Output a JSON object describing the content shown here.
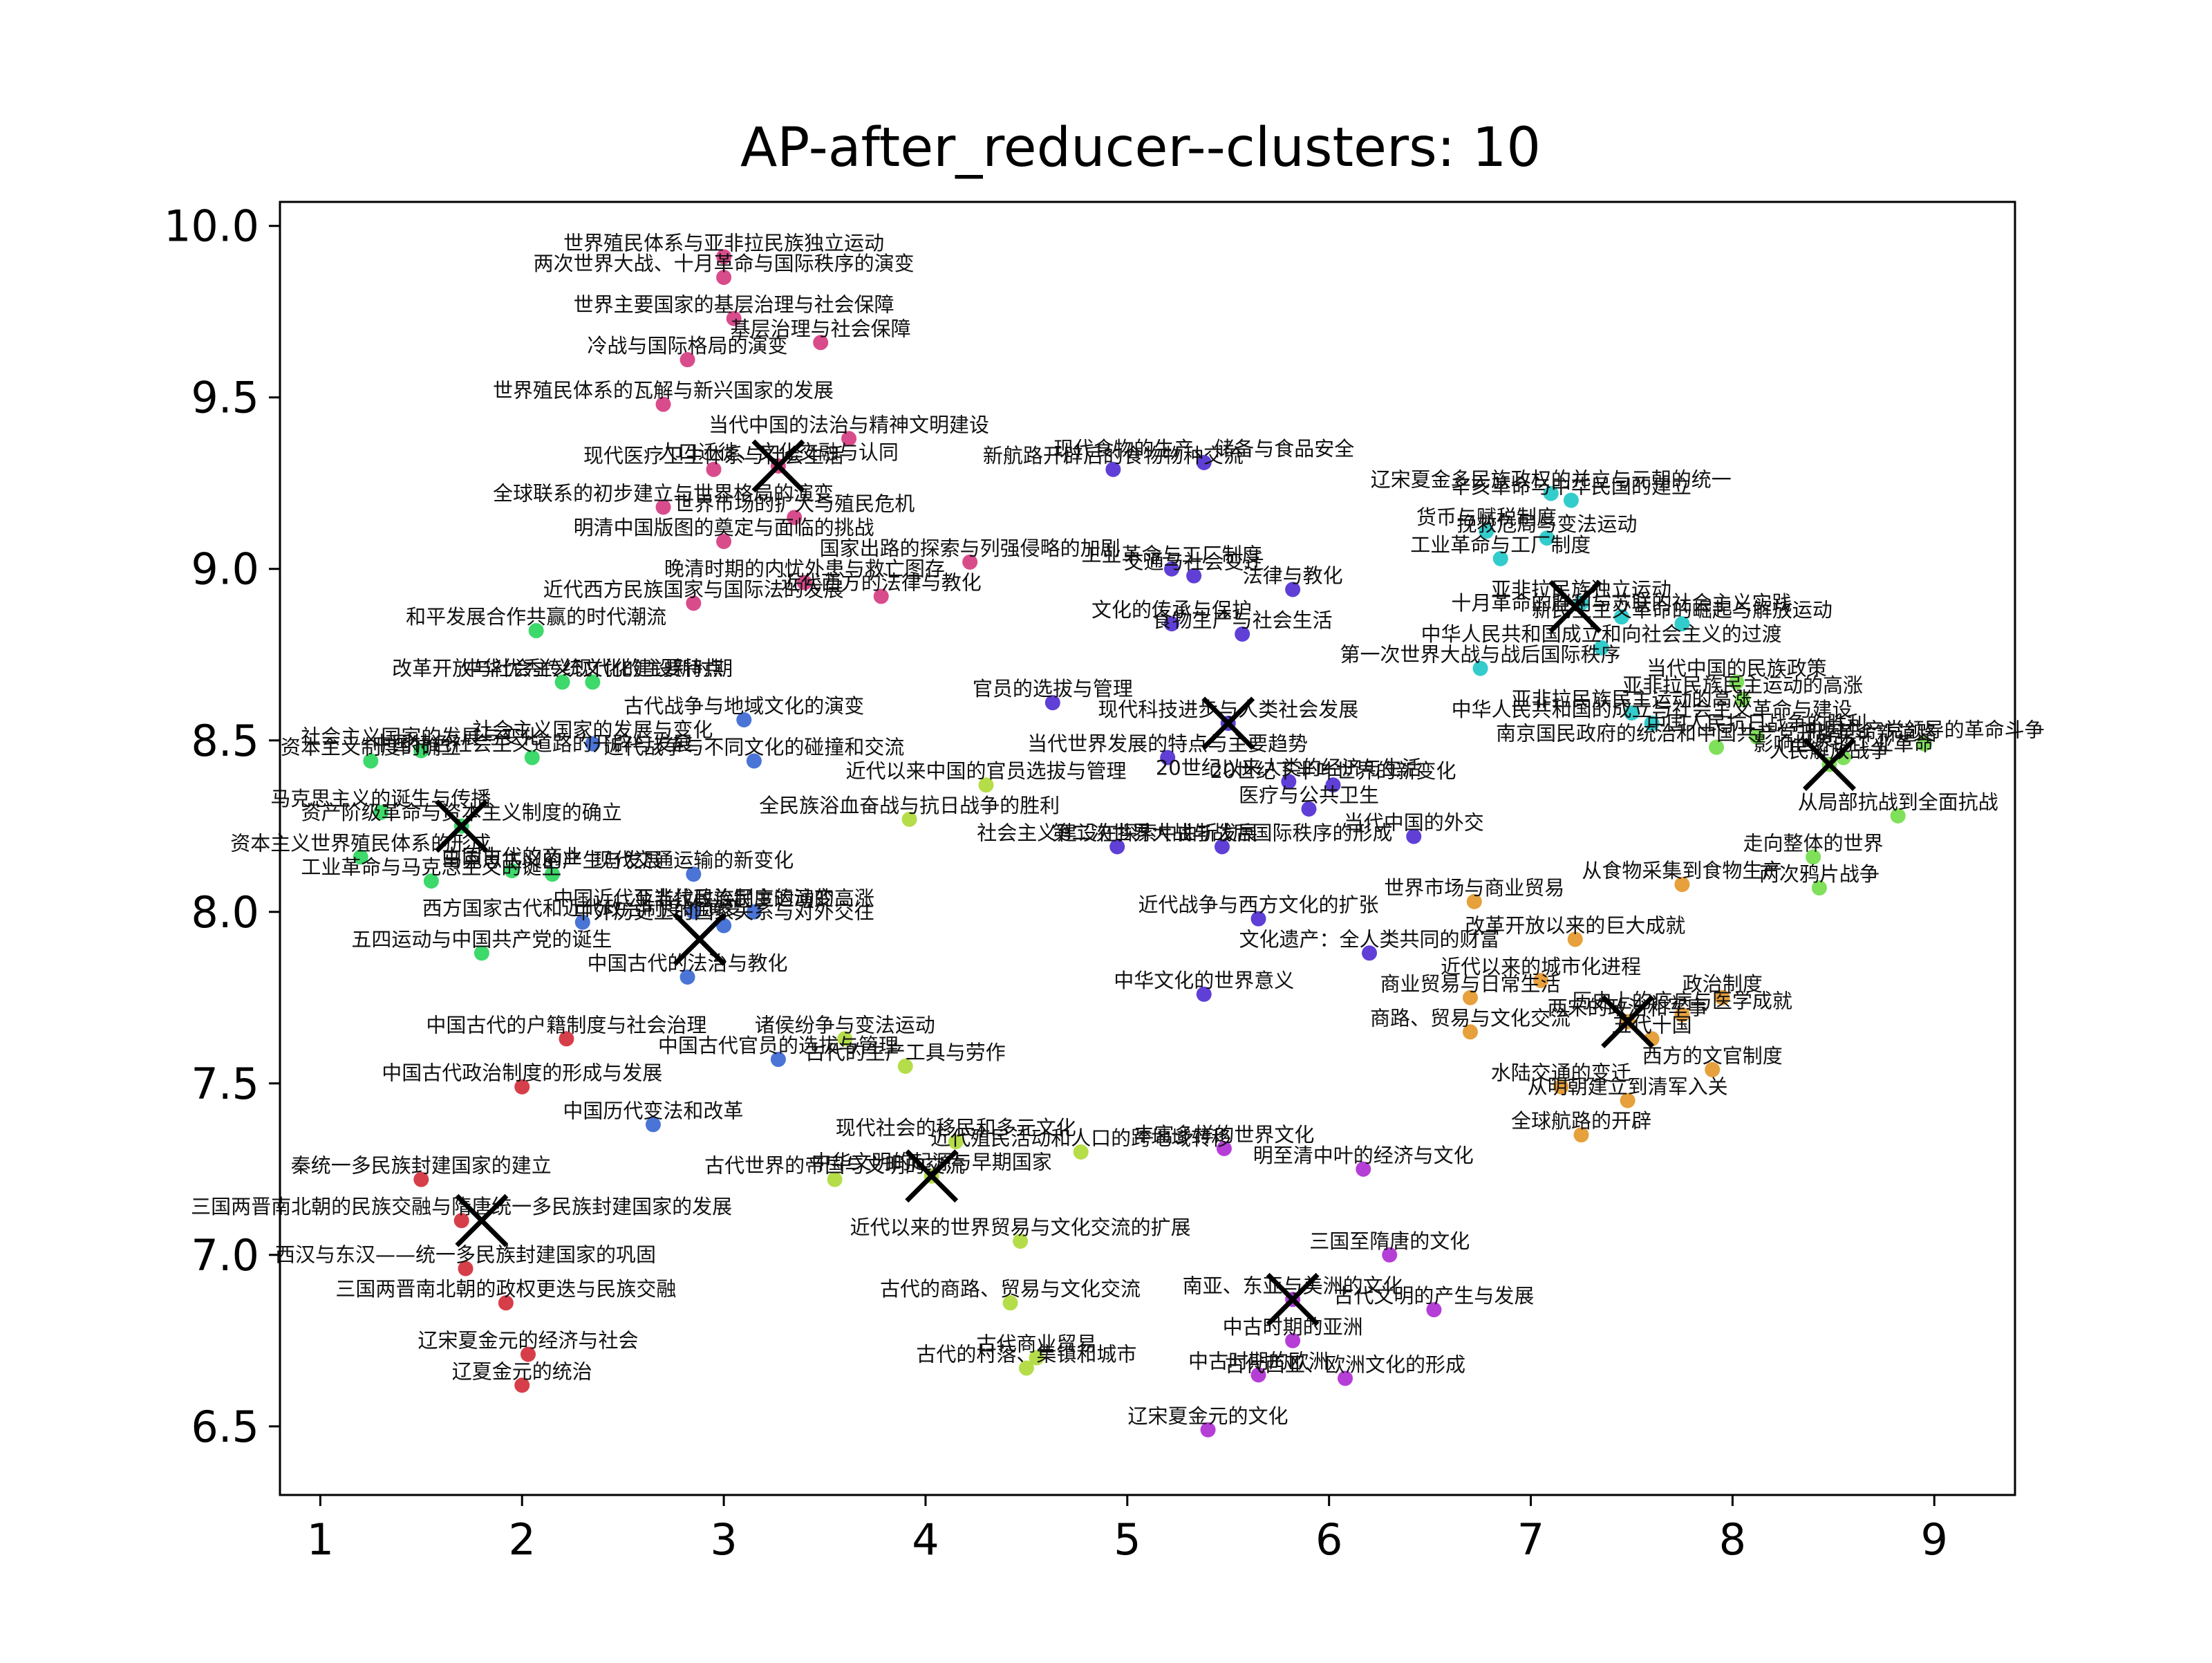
{
  "chart_data": {
    "type": "scatter",
    "title": "AP-after_reducer--clusters: 10",
    "xlabel": "",
    "ylabel": "",
    "xlim": [
      0.8,
      9.4
    ],
    "ylim": [
      6.3,
      10.07
    ],
    "xticks": [
      1,
      2,
      3,
      4,
      5,
      6,
      7,
      8,
      9
    ],
    "yticks": [
      6.5,
      7.0,
      7.5,
      8.0,
      8.5,
      9.0,
      9.5,
      10.0
    ],
    "ytick_labels": [
      "6.5",
      "7.0",
      "7.5",
      "8.0",
      "8.5",
      "9.0",
      "9.5",
      "10.0"
    ],
    "grid": false,
    "legend": "none",
    "centers_marker": "x",
    "cluster_colors": [
      "#d63f4a",
      "#d94c8c",
      "#4a74d6",
      "#5f3fd6",
      "#b53fd6",
      "#33cccc",
      "#3dd96b",
      "#7fe05a",
      "#b5dd4a",
      "#e6a03c"
    ],
    "cluster_centers": [
      {
        "x": 1.8,
        "y": 7.1
      },
      {
        "x": 3.27,
        "y": 9.3
      },
      {
        "x": 2.88,
        "y": 7.92
      },
      {
        "x": 5.5,
        "y": 8.55
      },
      {
        "x": 5.82,
        "y": 6.87
      },
      {
        "x": 7.22,
        "y": 8.89
      },
      {
        "x": 1.7,
        "y": 8.25
      },
      {
        "x": 8.48,
        "y": 8.43
      },
      {
        "x": 4.03,
        "y": 7.23
      },
      {
        "x": 7.48,
        "y": 7.68
      }
    ],
    "points": [
      {
        "label": "秦统一多民族封建国家的建立",
        "x": 1.5,
        "y": 7.22,
        "c": 0
      },
      {
        "label": "三国两晋南北朝的民族交融与隋唐统一多民族封建国家的发展",
        "x": 1.7,
        "y": 7.1,
        "c": 0
      },
      {
        "label": "西汉与东汉——统一多民族封建国家的巩固",
        "x": 1.72,
        "y": 6.96,
        "c": 0
      },
      {
        "label": "三国两晋南北朝的政权更迭与民族交融",
        "x": 1.92,
        "y": 6.86,
        "c": 0
      },
      {
        "label": "辽宋夏金元的经济与社会",
        "x": 2.03,
        "y": 6.71,
        "c": 0
      },
      {
        "label": "辽夏金元的统治",
        "x": 2.0,
        "y": 6.62,
        "c": 0
      },
      {
        "label": "中国古代的户籍制度与社会治理",
        "x": 2.22,
        "y": 7.63,
        "c": 0
      },
      {
        "label": "中国古代政治制度的形成与发展",
        "x": 2.0,
        "y": 7.49,
        "c": 0
      },
      {
        "label": "世界殖民体系与亚非拉民族独立运动",
        "x": 3.0,
        "y": 9.91,
        "c": 1
      },
      {
        "label": "两次世界大战、十月革命与国际秩序的演变",
        "x": 3.0,
        "y": 9.85,
        "c": 1
      },
      {
        "label": "世界主要国家的基层治理与社会保障",
        "x": 3.05,
        "y": 9.73,
        "c": 1
      },
      {
        "label": "基层治理与社会保障",
        "x": 3.48,
        "y": 9.66,
        "c": 1
      },
      {
        "label": "冷战与国际格局的演变",
        "x": 2.82,
        "y": 9.61,
        "c": 1
      },
      {
        "label": "世界殖民体系的瓦解与新兴国家的发展",
        "x": 2.7,
        "y": 9.48,
        "c": 1
      },
      {
        "label": "当代中国的法治与精神文明建设",
        "x": 3.62,
        "y": 9.38,
        "c": 1
      },
      {
        "label": "现代医疗卫生体系与社会生活",
        "x": 2.95,
        "y": 9.29,
        "c": 1
      },
      {
        "label": "人口迁徙、文化交融与认同",
        "x": 3.27,
        "y": 9.3,
        "c": 1
      },
      {
        "label": "全球联系的初步建立与世界格局的演变",
        "x": 2.7,
        "y": 9.18,
        "c": 1
      },
      {
        "label": "明清中国版图的奠定与面临的挑战",
        "x": 3.0,
        "y": 9.08,
        "c": 1
      },
      {
        "label": "世界市场的扩大与殖民危机",
        "x": 3.35,
        "y": 9.15,
        "c": 1
      },
      {
        "label": "国家出路的探索与列强侵略的加剧",
        "x": 4.22,
        "y": 9.02,
        "c": 1
      },
      {
        "label": "晚清时期的内忧外患与救亡图存",
        "x": 3.4,
        "y": 8.96,
        "c": 1
      },
      {
        "label": "近代西方民族国家与国际法的发展",
        "x": 2.85,
        "y": 8.9,
        "c": 1
      },
      {
        "label": "近代西方的法律与教化",
        "x": 3.78,
        "y": 8.92,
        "c": 1
      },
      {
        "label": "中国近代至当代政治制度的演变",
        "x": 2.85,
        "y": 8.0,
        "c": 2
      },
      {
        "label": "近代战争与不同文化的碰撞和交流",
        "x": 3.15,
        "y": 8.44,
        "c": 2
      },
      {
        "label": "古代战争与地域文化的演变",
        "x": 3.1,
        "y": 8.56,
        "c": 2
      },
      {
        "label": "社会主义国家的发展与变化",
        "x": 2.35,
        "y": 8.49,
        "c": 2
      },
      {
        "label": "中国古代的法治与教化",
        "x": 2.82,
        "y": 7.81,
        "c": 2
      },
      {
        "label": "西方国家古代和近代政治制度的演变",
        "x": 2.3,
        "y": 7.97,
        "c": 2
      },
      {
        "label": "中外历史上的国家关系与对外交往",
        "x": 3.0,
        "y": 7.96,
        "c": 2
      },
      {
        "label": "亚非拉民族民主运动的高涨",
        "x": 3.15,
        "y": 8.0,
        "c": 2
      },
      {
        "label": "中国历代变法和改革",
        "x": 2.65,
        "y": 7.38,
        "c": 2
      },
      {
        "label": "现代交通运输的新变化",
        "x": 2.85,
        "y": 8.11,
        "c": 2
      },
      {
        "label": "中国古代官员的选拔与管理",
        "x": 3.27,
        "y": 7.57,
        "c": 2
      },
      {
        "label": "现代食物的生产、储备与食品安全",
        "x": 5.38,
        "y": 9.31,
        "c": 3
      },
      {
        "label": "新航路开辟后的食物物种交流",
        "x": 4.93,
        "y": 9.29,
        "c": 3
      },
      {
        "label": "工业革命与工厂制度",
        "x": 5.22,
        "y": 9.0,
        "c": 3
      },
      {
        "label": "交通与社会变迁",
        "x": 5.33,
        "y": 8.98,
        "c": 3
      },
      {
        "label": "法律与教化",
        "x": 5.82,
        "y": 8.94,
        "c": 3
      },
      {
        "label": "文化的传承与保护",
        "x": 5.22,
        "y": 8.84,
        "c": 3
      },
      {
        "label": "食物生产与社会生活",
        "x": 5.57,
        "y": 8.81,
        "c": 3
      },
      {
        "label": "官员的选拔与管理",
        "x": 4.63,
        "y": 8.61,
        "c": 3
      },
      {
        "label": "现代科技进步与人类社会发展",
        "x": 5.5,
        "y": 8.55,
        "c": 3
      },
      {
        "label": "当代世界发展的特点与主要趋势",
        "x": 5.2,
        "y": 8.45,
        "c": 3
      },
      {
        "label": "20世纪以来人类的经济与生活",
        "x": 5.8,
        "y": 8.38,
        "c": 3
      },
      {
        "label": "20世纪下半叶世界的新变化",
        "x": 6.02,
        "y": 8.37,
        "c": 3
      },
      {
        "label": "医疗与公共卫生",
        "x": 5.9,
        "y": 8.3,
        "c": 3
      },
      {
        "label": "社会主义建设在探索中曲折发展",
        "x": 4.95,
        "y": 8.19,
        "c": 3
      },
      {
        "label": "第二次世界大战与战后国际秩序的形成",
        "x": 5.47,
        "y": 8.19,
        "c": 3
      },
      {
        "label": "当代中国的外交",
        "x": 6.42,
        "y": 8.22,
        "c": 3
      },
      {
        "label": "近代战争与西方文化的扩张",
        "x": 5.65,
        "y": 7.98,
        "c": 3
      },
      {
        "label": "文化遗产：全人类共同的财富",
        "x": 6.2,
        "y": 7.88,
        "c": 3
      },
      {
        "label": "中华文化的世界意义",
        "x": 5.38,
        "y": 7.76,
        "c": 3
      },
      {
        "label": "丰富多样的世界文化",
        "x": 5.48,
        "y": 7.31,
        "c": 4
      },
      {
        "label": "明至清中叶的经济与文化",
        "x": 6.17,
        "y": 7.25,
        "c": 4
      },
      {
        "label": "三国至隋唐的文化",
        "x": 6.3,
        "y": 7.0,
        "c": 4
      },
      {
        "label": "南亚、东亚与美洲的文化",
        "x": 5.82,
        "y": 6.87,
        "c": 4
      },
      {
        "label": "古代文明的产生与发展",
        "x": 6.52,
        "y": 6.84,
        "c": 4
      },
      {
        "label": "中古时期的亚洲",
        "x": 5.82,
        "y": 6.75,
        "c": 4
      },
      {
        "label": "中古时期的欧洲",
        "x": 5.65,
        "y": 6.65,
        "c": 4
      },
      {
        "label": "古代西亚、欧洲文化的形成",
        "x": 6.08,
        "y": 6.64,
        "c": 4
      },
      {
        "label": "辽宋夏金元的文化",
        "x": 5.4,
        "y": 6.49,
        "c": 4
      },
      {
        "label": "辽宋夏金多民族政权的并立与元朝的统一",
        "x": 7.1,
        "y": 9.22,
        "c": 5
      },
      {
        "label": "辛亥革命与中华民国的建立",
        "x": 7.2,
        "y": 9.2,
        "c": 5
      },
      {
        "label": "货币与赋税制度",
        "x": 6.78,
        "y": 9.11,
        "c": 5
      },
      {
        "label": "挽救危局与变法运动",
        "x": 7.08,
        "y": 9.09,
        "c": 5
      },
      {
        "label": "工业革命与工厂制度",
        "x": 6.85,
        "y": 9.03,
        "c": 5
      },
      {
        "label": "亚非拉民族独立运动",
        "x": 7.25,
        "y": 8.9,
        "c": 5
      },
      {
        "label": "十月革命的胜利与苏联的社会主义实践",
        "x": 7.45,
        "y": 8.86,
        "c": 5
      },
      {
        "label": "新民主主义革命的崛起与解放运动",
        "x": 7.75,
        "y": 8.84,
        "c": 5
      },
      {
        "label": "中华人民共和国成立和向社会主义的过渡",
        "x": 7.35,
        "y": 8.77,
        "c": 5
      },
      {
        "label": "第一次世界大战与战后国际秩序",
        "x": 6.75,
        "y": 8.71,
        "c": 5
      },
      {
        "label": "亚非拉民族民主运动的高涨",
        "x": 7.5,
        "y": 8.58,
        "c": 5
      },
      {
        "label": "中华人民共和国的成立与社会主义革命与建设",
        "x": 7.6,
        "y": 8.55,
        "c": 5
      },
      {
        "label": "马克思主义的诞生与传播",
        "x": 1.3,
        "y": 8.29,
        "c": 6
      },
      {
        "label": "改革开放与社会主义现代化建设新时期",
        "x": 2.2,
        "y": 8.67,
        "c": 6
      },
      {
        "label": "中华优秀传统文化的主要特点",
        "x": 2.35,
        "y": 8.67,
        "c": 6
      },
      {
        "label": "和平发展合作共赢的时代潮流",
        "x": 2.07,
        "y": 8.82,
        "c": 6
      },
      {
        "label": "资本主义制度的确立",
        "x": 1.25,
        "y": 8.44,
        "c": 6
      },
      {
        "label": "中国特色社会主义道路的开辟与发展",
        "x": 2.05,
        "y": 8.45,
        "c": 6
      },
      {
        "label": "社会主义国家的发展与变化",
        "x": 1.5,
        "y": 8.47,
        "c": 6
      },
      {
        "label": "资产阶级革命与资本主义制度的确立",
        "x": 1.7,
        "y": 8.25,
        "c": 6
      },
      {
        "label": "资本主义世界殖民体系的形成",
        "x": 1.2,
        "y": 8.16,
        "c": 6
      },
      {
        "label": "中国古代的商业",
        "x": 1.95,
        "y": 8.12,
        "c": 6
      },
      {
        "label": "马克思主义的产生与发展",
        "x": 2.15,
        "y": 8.11,
        "c": 6
      },
      {
        "label": "工业革命与马克思主义的诞生",
        "x": 1.55,
        "y": 8.09,
        "c": 6
      },
      {
        "label": "五四运动与中国共产党的诞生",
        "x": 1.8,
        "y": 7.88,
        "c": 6
      },
      {
        "label": "当代中国的民族政策",
        "x": 8.02,
        "y": 8.67,
        "c": 7
      },
      {
        "label": "亚非拉民族民主运动的高涨",
        "x": 8.05,
        "y": 8.62,
        "c": 7
      },
      {
        "label": "南京国民政府的统治和中国共产党开辟革命新道路",
        "x": 7.92,
        "y": 8.48,
        "c": 7
      },
      {
        "label": "中国人民抗日战争的胜利",
        "x": 8.12,
        "y": 8.51,
        "c": 7
      },
      {
        "label": "影响世界的工业革命",
        "x": 8.55,
        "y": 8.45,
        "c": 7
      },
      {
        "label": "中国共产党领导的革命斗争",
        "x": 8.95,
        "y": 8.49,
        "c": 7
      },
      {
        "label": "人民解放战争",
        "x": 8.48,
        "y": 8.43,
        "c": 7
      },
      {
        "label": "从局部抗战到全面抗战",
        "x": 8.82,
        "y": 8.28,
        "c": 7
      },
      {
        "label": "走向整体的世界",
        "x": 8.4,
        "y": 8.16,
        "c": 7
      },
      {
        "label": "两次鸦片战争",
        "x": 8.43,
        "y": 8.07,
        "c": 7
      },
      {
        "label": "全民族浴血奋战与抗日战争的胜利",
        "x": 3.92,
        "y": 8.27,
        "c": 8
      },
      {
        "label": "近代以来中国的官员选拔与管理",
        "x": 4.3,
        "y": 8.37,
        "c": 8
      },
      {
        "label": "古代世界的帝国与文明的交流",
        "x": 3.55,
        "y": 7.22,
        "c": 8
      },
      {
        "label": "中华文明的起源与早期国家",
        "x": 4.03,
        "y": 7.23,
        "c": 8
      },
      {
        "label": "现代社会的移民和多元文化",
        "x": 4.15,
        "y": 7.33,
        "c": 8
      },
      {
        "label": "近代殖民活动和人口的跨地域转移",
        "x": 4.77,
        "y": 7.3,
        "c": 8
      },
      {
        "label": "古代的生产工具与劳作",
        "x": 3.9,
        "y": 7.55,
        "c": 8
      },
      {
        "label": "诸侯纷争与变法运动",
        "x": 3.6,
        "y": 7.63,
        "c": 8
      },
      {
        "label": "古代的村落、集镇和城市",
        "x": 4.5,
        "y": 6.67,
        "c": 8
      },
      {
        "label": "古代的商路、贸易与文化交流",
        "x": 4.42,
        "y": 6.86,
        "c": 8
      },
      {
        "label": "近代以来的世界贸易与文化交流的扩展",
        "x": 4.47,
        "y": 7.04,
        "c": 8
      },
      {
        "label": "古代商业贸易",
        "x": 4.55,
        "y": 6.7,
        "c": 8
      },
      {
        "label": "世界市场与商业贸易",
        "x": 6.72,
        "y": 8.03,
        "c": 9
      },
      {
        "label": "改革开放以来的巨大成就",
        "x": 7.22,
        "y": 7.92,
        "c": 9
      },
      {
        "label": "从食物采集到食物生产",
        "x": 7.75,
        "y": 8.08,
        "c": 9
      },
      {
        "label": "近代以来的城市化进程",
        "x": 7.05,
        "y": 7.8,
        "c": 9
      },
      {
        "label": "商业贸易与日常生活",
        "x": 6.7,
        "y": 7.75,
        "c": 9
      },
      {
        "label": "商路、贸易与文化交流",
        "x": 6.7,
        "y": 7.65,
        "c": 9
      },
      {
        "label": "历史上的疫病与医学成就",
        "x": 7.75,
        "y": 7.7,
        "c": 9
      },
      {
        "label": "政治制度",
        "x": 7.95,
        "y": 7.75,
        "c": 9
      },
      {
        "label": "两宋的政治和军事",
        "x": 7.48,
        "y": 7.68,
        "c": 9
      },
      {
        "label": "五代十国",
        "x": 7.6,
        "y": 7.63,
        "c": 9
      },
      {
        "label": "西方的文官制度",
        "x": 7.9,
        "y": 7.54,
        "c": 9
      },
      {
        "label": "从明朝建立到清军入关",
        "x": 7.48,
        "y": 7.45,
        "c": 9
      },
      {
        "label": "水陆交通的变迁",
        "x": 7.15,
        "y": 7.49,
        "c": 9
      },
      {
        "label": "全球航路的开辟",
        "x": 7.25,
        "y": 7.35,
        "c": 9
      }
    ]
  }
}
